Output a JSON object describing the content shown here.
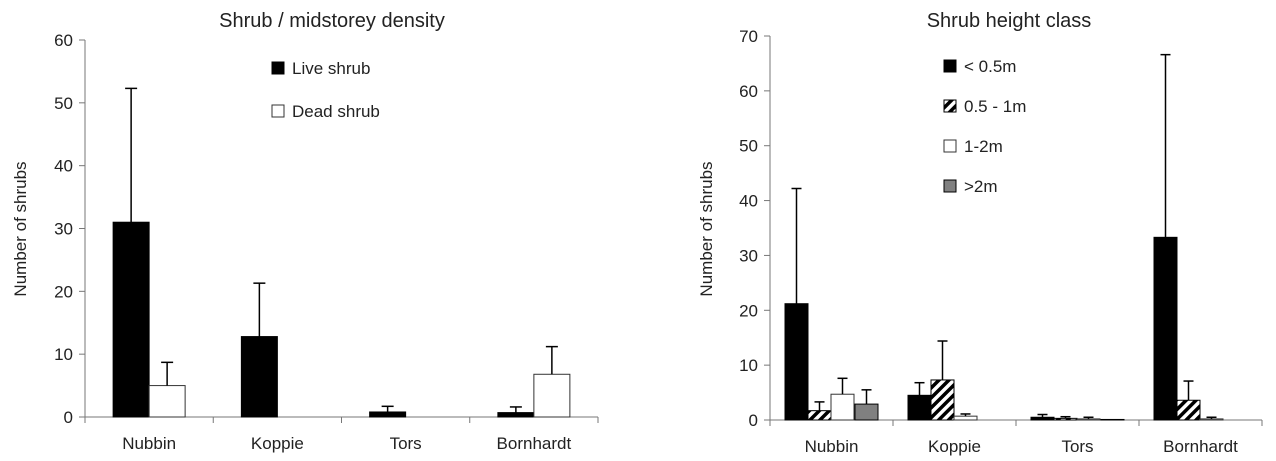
{
  "chart_data": [
    {
      "type": "bar",
      "title": "Shrub / midstorey density",
      "ylabel": "Number of shrubs",
      "xlabel": "",
      "ylim": [
        0,
        60
      ],
      "yticks": [
        0,
        10,
        20,
        30,
        40,
        50,
        60
      ],
      "categories": [
        "Nubbin",
        "Koppie",
        "Tors",
        "Bornhardt"
      ],
      "legend_position": "top-center",
      "grid": false,
      "series": [
        {
          "name": "Live shrub",
          "style": "solid",
          "color": "#000000",
          "values": [
            31,
            12.8,
            0.8,
            0.7
          ],
          "errors": [
            21.3,
            8.5,
            0.9,
            0.9
          ]
        },
        {
          "name": "Dead shrub",
          "style": "open",
          "color": "#ffffff",
          "values": [
            5,
            0,
            0,
            6.8
          ],
          "errors": [
            3.7,
            0,
            0,
            4.4
          ]
        }
      ]
    },
    {
      "type": "bar",
      "title": "Shrub height class",
      "ylabel": "Number of shrubs",
      "xlabel": "",
      "ylim": [
        0,
        70
      ],
      "yticks": [
        0,
        10,
        20,
        30,
        40,
        50,
        60,
        70
      ],
      "categories": [
        "Nubbin",
        "Koppie",
        "Tors",
        "Bornhardt"
      ],
      "legend_position": "top-center",
      "grid": false,
      "series": [
        {
          "name": "< 0.5m",
          "style": "solid",
          "color": "#000000",
          "values": [
            21.2,
            4.5,
            0.5,
            33.3
          ],
          "errors": [
            21,
            2.3,
            0.5,
            33.3
          ]
        },
        {
          "name": "0.5 - 1m",
          "style": "hatch",
          "color": "#000000",
          "values": [
            1.7,
            7.3,
            0.3,
            3.6
          ],
          "errors": [
            1.6,
            7.1,
            0.3,
            3.5
          ]
        },
        {
          "name": "1-2m",
          "style": "open",
          "color": "#ffffff",
          "values": [
            4.7,
            0.7,
            0.2,
            0.2
          ],
          "errors": [
            2.9,
            0.4,
            0.3,
            0.3
          ]
        },
        {
          "name": ">2m",
          "style": "grey",
          "color": "#808080",
          "values": [
            2.9,
            0,
            0.1,
            0
          ],
          "errors": [
            2.6,
            0,
            0,
            0
          ]
        }
      ]
    }
  ]
}
